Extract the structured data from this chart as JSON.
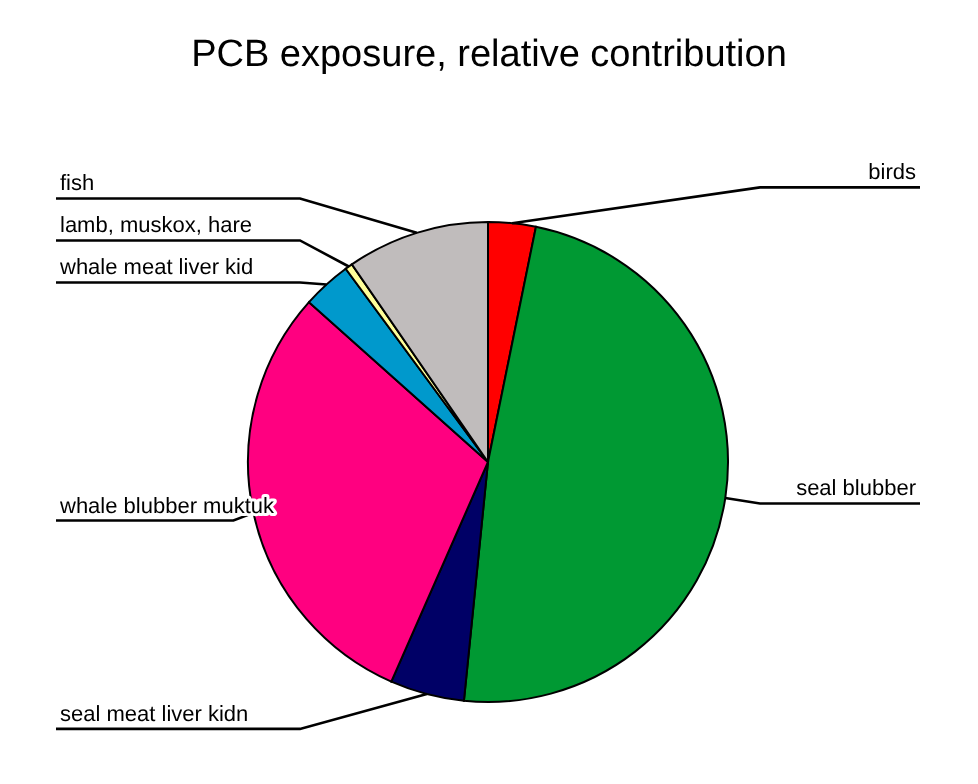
{
  "chart_data": {
    "type": "pie",
    "title": "PCB exposure, relative contribution",
    "categories": [
      "birds",
      "seal blubber",
      "seal meat liver kidn",
      "whale blubber muktuk",
      "whale meat liver kid",
      "lamb, muskox, hare",
      "fish"
    ],
    "values": [
      3.2,
      48.4,
      5,
      30,
      3.3,
      0.5,
      9.6
    ],
    "colors": [
      "#ff0000",
      "#009933",
      "#000066",
      "#ff0080",
      "#0099cc",
      "#ffff99",
      "#c0bcbc"
    ]
  }
}
